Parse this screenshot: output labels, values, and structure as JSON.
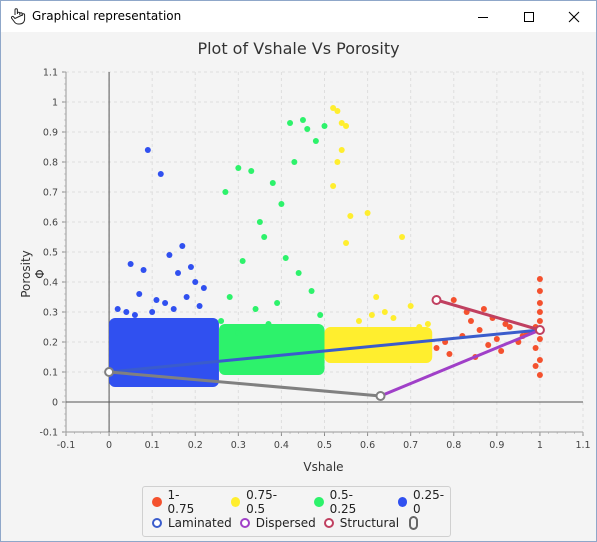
{
  "window": {
    "title": "Graphical representation"
  },
  "chart_data": {
    "type": "scatter",
    "title": "Plot of Vshale Vs Porosity",
    "xlabel": "Vshale",
    "ylabel": "Porosity Φ",
    "xlim": [
      -0.1,
      1.1
    ],
    "ylim": [
      -0.1,
      1.1
    ],
    "x_ticks": [
      "-0.1",
      "0",
      "0.1",
      "0.2",
      "0.3",
      "0.4",
      "0.5",
      "0.6",
      "0.7",
      "0.8",
      "0.9",
      "1",
      "1.1"
    ],
    "y_ticks": [
      "-0.1",
      "0",
      "0.1",
      "0.2",
      "0.3",
      "0.4",
      "0.5",
      "0.6",
      "0.7",
      "0.8",
      "0.9",
      "1",
      "1.1"
    ],
    "grid": true,
    "legend_position": "bottom",
    "series": [
      {
        "name": "1-0.75",
        "color": "#f4512e",
        "x": [
          0.78,
          0.79,
          0.82,
          0.83,
          0.85,
          0.86,
          0.88,
          0.89,
          0.9,
          0.91,
          0.93,
          0.95,
          0.97,
          0.99,
          1.0,
          1.0,
          1.0,
          1.0,
          1.0,
          1.0,
          1.0,
          1.0,
          0.99,
          0.99,
          0.8,
          0.84,
          0.87,
          0.92,
          0.96,
          0.76
        ],
        "y": [
          0.2,
          0.16,
          0.22,
          0.3,
          0.15,
          0.24,
          0.19,
          0.28,
          0.21,
          0.17,
          0.25,
          0.2,
          0.23,
          0.18,
          0.41,
          0.37,
          0.33,
          0.3,
          0.27,
          0.21,
          0.14,
          0.09,
          0.25,
          0.12,
          0.34,
          0.27,
          0.31,
          0.26,
          0.22,
          0.18
        ]
      },
      {
        "name": "0.75-0.5",
        "color": "#ffee2e",
        "x": [
          0.52,
          0.53,
          0.54,
          0.55,
          0.53,
          0.54,
          0.52,
          0.56,
          0.55,
          0.6,
          0.62,
          0.64,
          0.66,
          0.68,
          0.7,
          0.72,
          0.6,
          0.63,
          0.57,
          0.65,
          0.73,
          0.74,
          0.58,
          0.61
        ],
        "y": [
          0.98,
          0.97,
          0.93,
          0.92,
          0.8,
          0.84,
          0.72,
          0.62,
          0.53,
          0.63,
          0.35,
          0.3,
          0.28,
          0.55,
          0.32,
          0.25,
          0.24,
          0.21,
          0.19,
          0.18,
          0.22,
          0.26,
          0.27,
          0.29
        ]
      },
      {
        "name": "0.5-0.25",
        "color": "#2df26b",
        "x": [
          0.27,
          0.3,
          0.33,
          0.35,
          0.38,
          0.4,
          0.42,
          0.43,
          0.45,
          0.46,
          0.48,
          0.5,
          0.36,
          0.41,
          0.44,
          0.31,
          0.28,
          0.34,
          0.39,
          0.47,
          0.49,
          0.26,
          0.3,
          0.37
        ],
        "y": [
          0.7,
          0.78,
          0.77,
          0.6,
          0.73,
          0.66,
          0.93,
          0.8,
          0.94,
          0.91,
          0.87,
          0.92,
          0.55,
          0.48,
          0.43,
          0.47,
          0.35,
          0.31,
          0.33,
          0.37,
          0.29,
          0.27,
          0.23,
          0.26
        ]
      },
      {
        "name": "0.25-0",
        "color": "#3050f0",
        "x": [
          0.09,
          0.12,
          0.17,
          0.14,
          0.19,
          0.16,
          0.2,
          0.22,
          0.05,
          0.08,
          0.11,
          0.13,
          0.02,
          0.04,
          0.07,
          0.18,
          0.21,
          0.15,
          0.06,
          0.1
        ],
        "y": [
          0.84,
          0.76,
          0.52,
          0.49,
          0.45,
          0.43,
          0.4,
          0.38,
          0.46,
          0.44,
          0.34,
          0.33,
          0.31,
          0.3,
          0.36,
          0.35,
          0.32,
          0.31,
          0.29,
          0.3
        ]
      }
    ],
    "overlay_lines": [
      {
        "name": "Laminated",
        "color": "#3a5ccc",
        "points": [
          [
            0.0,
            0.1
          ],
          [
            1.0,
            0.24
          ]
        ]
      },
      {
        "name": "Dispersed",
        "color": "#a040c8",
        "points": [
          [
            0.63,
            0.02
          ],
          [
            1.0,
            0.24
          ]
        ]
      },
      {
        "name": "Structural",
        "color": "#c04060",
        "points": [
          [
            0.76,
            0.34
          ],
          [
            1.0,
            0.24
          ]
        ]
      },
      {
        "name": "",
        "color": "#808080",
        "points": [
          [
            0.0,
            0.1
          ],
          [
            0.63,
            0.02
          ]
        ]
      }
    ],
    "legend": [
      {
        "label": "1-0.75",
        "color": "#f4512e",
        "style": "filled"
      },
      {
        "label": "0.75-0.5",
        "color": "#ffee2e",
        "style": "filled"
      },
      {
        "label": "0.5-0.25",
        "color": "#2df26b",
        "style": "filled"
      },
      {
        "label": "0.25-0",
        "color": "#3050f0",
        "style": "filled"
      },
      {
        "label": "Laminated",
        "color": "#3a5ccc",
        "style": "hollow"
      },
      {
        "label": "Dispersed",
        "color": "#a040c8",
        "style": "hollow"
      },
      {
        "label": "Structural",
        "color": "#c04060",
        "style": "hollow"
      }
    ]
  },
  "legend": {
    "row1": [
      "1-0.75",
      "0.75-0.5",
      "0.5-0.25",
      "0.25-0"
    ],
    "row2": [
      "Laminated",
      "Dispersed",
      "Structural"
    ]
  }
}
